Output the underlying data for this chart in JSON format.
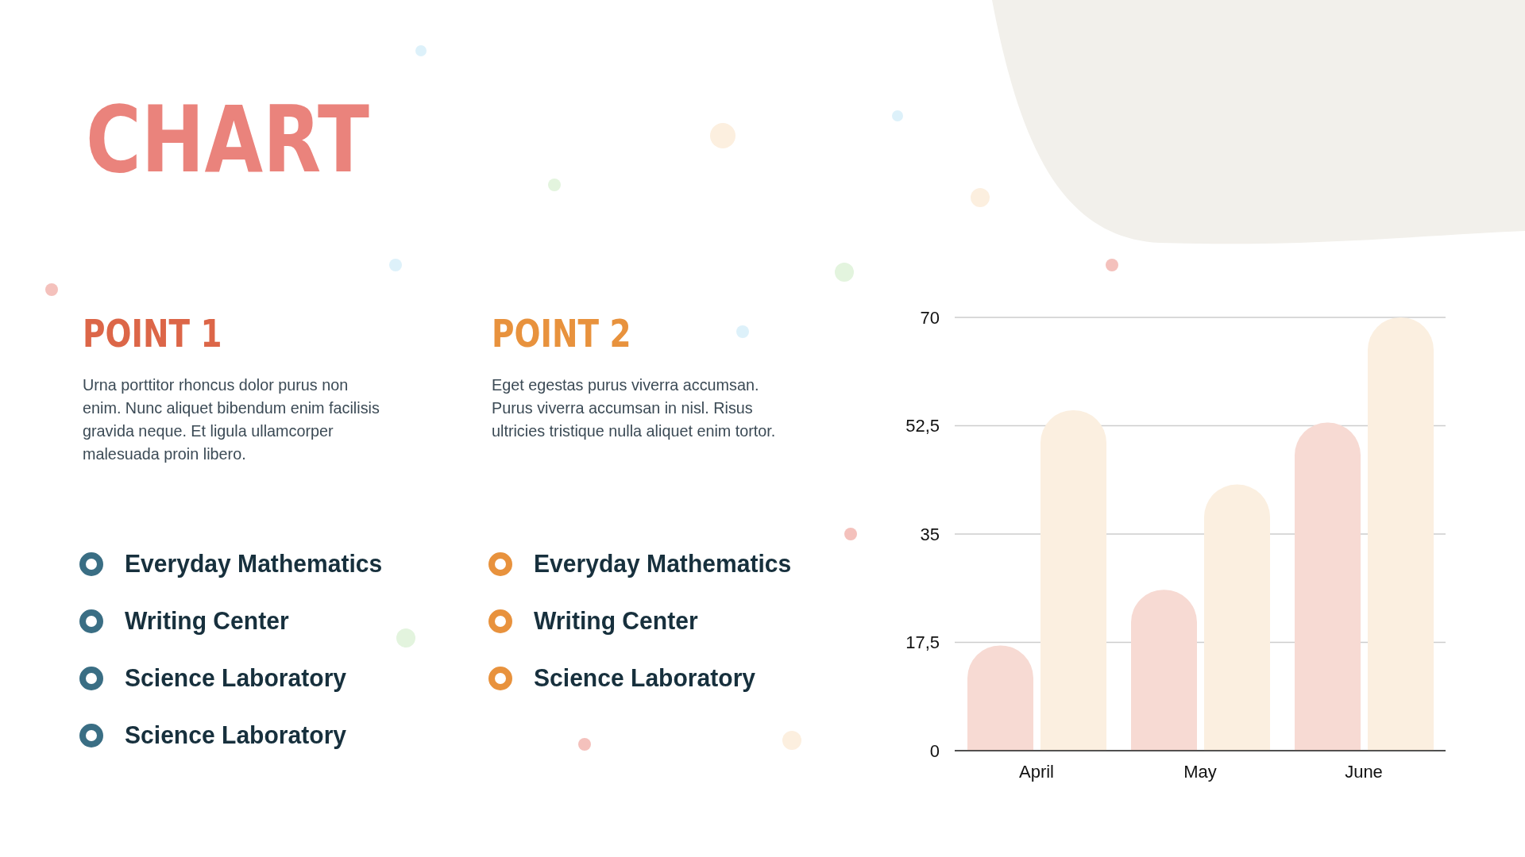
{
  "chart_data": [
    {
      "type": "other",
      "title": "POINT 1",
      "subtitle": "Urna porttitor rhoncus dolor purus non enim. Nunc aliquet bibendum enim facilisis gravida neque. Et ligula ullamcorper malesuada proin libero.",
      "annotations": [
        "Everyday Mathematics",
        "Writing Center",
        "Science Laboratory",
        "Science Laboratory"
      ]
    },
    {
      "type": "other",
      "title": "POINT 2",
      "subtitle": "Eget egestas purus viverra accumsan. Purus viverra accumsan in nisl. Risus ultricies tristique nulla aliquet enim tortor.",
      "annotations": [
        "Everyday Mathematics",
        "Writing Center",
        "Science Laboratory"
      ]
    },
    {
      "type": "bar",
      "title": "CHART",
      "categories": [
        "April",
        "May",
        "June"
      ],
      "series": [
        {
          "color": "#f7dad3",
          "values": [
            17,
            26,
            53
          ]
        },
        {
          "color": "#fbefe0",
          "values": [
            55,
            43,
            70
          ]
        }
      ],
      "ylim": [
        0,
        70
      ],
      "yticks": [
        0,
        {
          "value": 17.5,
          "label": "17,5"
        },
        35,
        {
          "value": 52.5,
          "label": "52,5"
        },
        70
      ],
      "grid": "y"
    }
  ]
}
